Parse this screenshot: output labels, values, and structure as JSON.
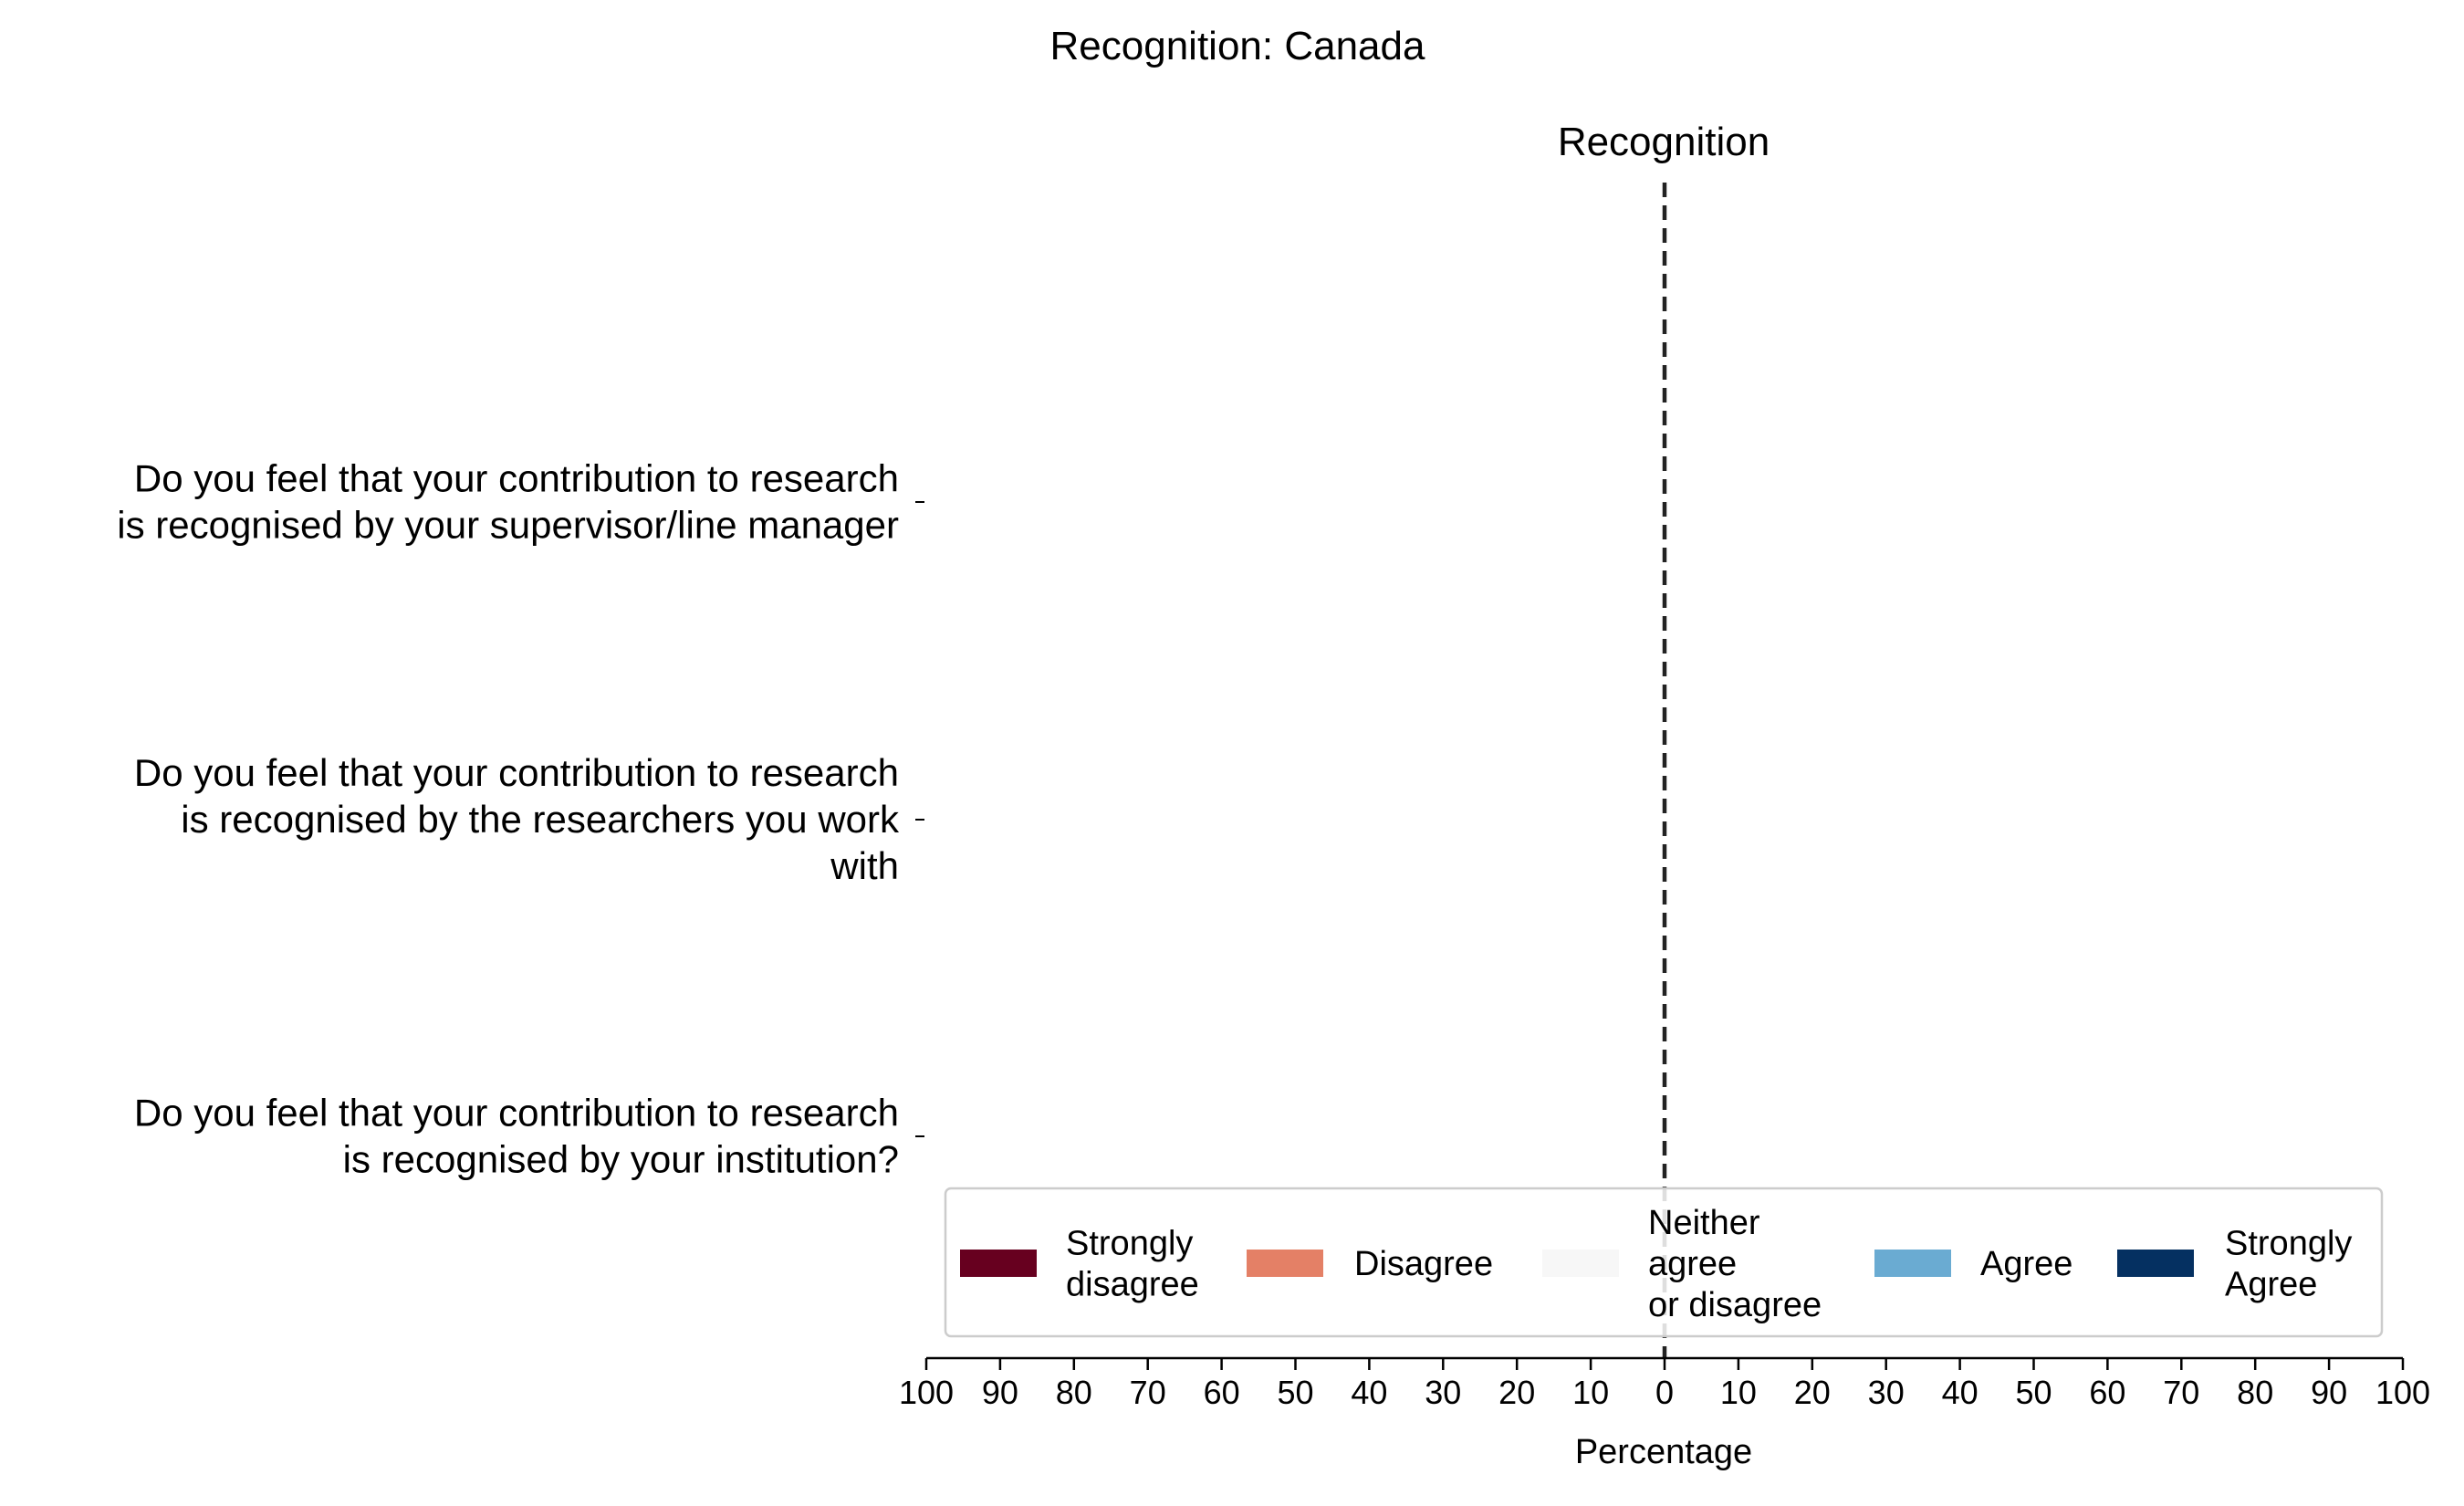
{
  "chart_data": {
    "type": "bar",
    "orientation": "horizontal",
    "stacked": "diverging",
    "title": "Recognition: Canada",
    "panel_title": "Recognition",
    "xlabel": "Percentage",
    "ylabel": "",
    "xlim": [
      -100,
      100
    ],
    "xticks": [
      -100,
      -90,
      -80,
      -70,
      -60,
      -50,
      -40,
      -30,
      -20,
      -10,
      0,
      10,
      20,
      30,
      40,
      50,
      60,
      70,
      80,
      90,
      100
    ],
    "xtick_labels": [
      "100",
      "90",
      "80",
      "70",
      "60",
      "50",
      "40",
      "30",
      "20",
      "10",
      "0",
      "10",
      "20",
      "30",
      "40",
      "50",
      "60",
      "70",
      "80",
      "90",
      "100"
    ],
    "categories": [
      [
        "Do you feel that your contribution to research",
        "is recognised by your supervisor/line manager"
      ],
      [
        "Do you feel that your contribution to research",
        "is recognised by the researchers you work",
        "with"
      ],
      [
        "Do you feel that your contribution to research",
        "is recognised by your institution?"
      ]
    ],
    "series": [
      {
        "name": "Strongly disagree",
        "legend_lines": [
          "Strongly",
          "disagree"
        ],
        "color": "#67001f",
        "values": [
          0,
          0,
          0
        ]
      },
      {
        "name": "Disagree",
        "legend_lines": [
          "Disagree"
        ],
        "color": "#e48066",
        "values": [
          0,
          0,
          0
        ]
      },
      {
        "name": "Neither agree or disagree",
        "legend_lines": [
          "Neither",
          "agree",
          "or disagree"
        ],
        "color": "#f7f7f7",
        "values": [
          0,
          0,
          0
        ]
      },
      {
        "name": "Agree",
        "legend_lines": [
          "Agree"
        ],
        "color": "#6aabd2",
        "values": [
          0,
          0,
          0
        ]
      },
      {
        "name": "Strongly Agree",
        "legend_lines": [
          "Strongly",
          "Agree"
        ],
        "color": "#053061",
        "values": [
          0,
          0,
          0
        ]
      }
    ],
    "center_line": 0,
    "grid": false,
    "legend_position": "lower-right"
  }
}
